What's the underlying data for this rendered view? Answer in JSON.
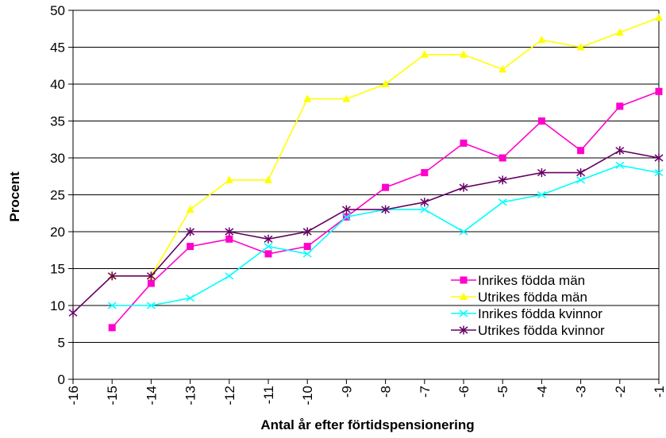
{
  "chart_data": {
    "type": "line",
    "title": "",
    "xlabel": "Antal år efter förtidspensionering",
    "ylabel": "Procent",
    "categories": [
      "-16",
      "-15",
      "-14",
      "-13",
      "-12",
      "-11",
      "-10",
      "-9",
      "-8",
      "-7",
      "-6",
      "-5",
      "-4",
      "-3",
      "-2",
      "-1"
    ],
    "ylim": [
      0,
      50
    ],
    "yticks": [
      0,
      5,
      10,
      15,
      20,
      25,
      30,
      35,
      40,
      45,
      50
    ],
    "grid": "horizontal",
    "legend_position": "bottom-right",
    "series": [
      {
        "name": "Inrikes födda män",
        "color": "#FF00CC",
        "marker": "square",
        "values": [
          null,
          7,
          13,
          18,
          19,
          17,
          18,
          22,
          26,
          28,
          32,
          30,
          35,
          31,
          37,
          39
        ]
      },
      {
        "name": "Utrikes födda män",
        "color": "#FFFF00",
        "marker": "triangle",
        "values": [
          null,
          14,
          14,
          23,
          27,
          27,
          38,
          38,
          40,
          44,
          44,
          42,
          46,
          45,
          47,
          49
        ]
      },
      {
        "name": "Inrikes födda kvinnor",
        "color": "#00FFFF",
        "marker": "x",
        "values": [
          null,
          10,
          10,
          11,
          14,
          18,
          17,
          22,
          23,
          23,
          20,
          24,
          25,
          27,
          29,
          28
        ]
      },
      {
        "name": "Utrikes födda kvinnor",
        "color": "#660066",
        "marker": "star",
        "values": [
          9,
          14,
          14,
          20,
          20,
          19,
          20,
          23,
          23,
          24,
          26,
          27,
          28,
          28,
          31,
          30
        ]
      }
    ]
  }
}
